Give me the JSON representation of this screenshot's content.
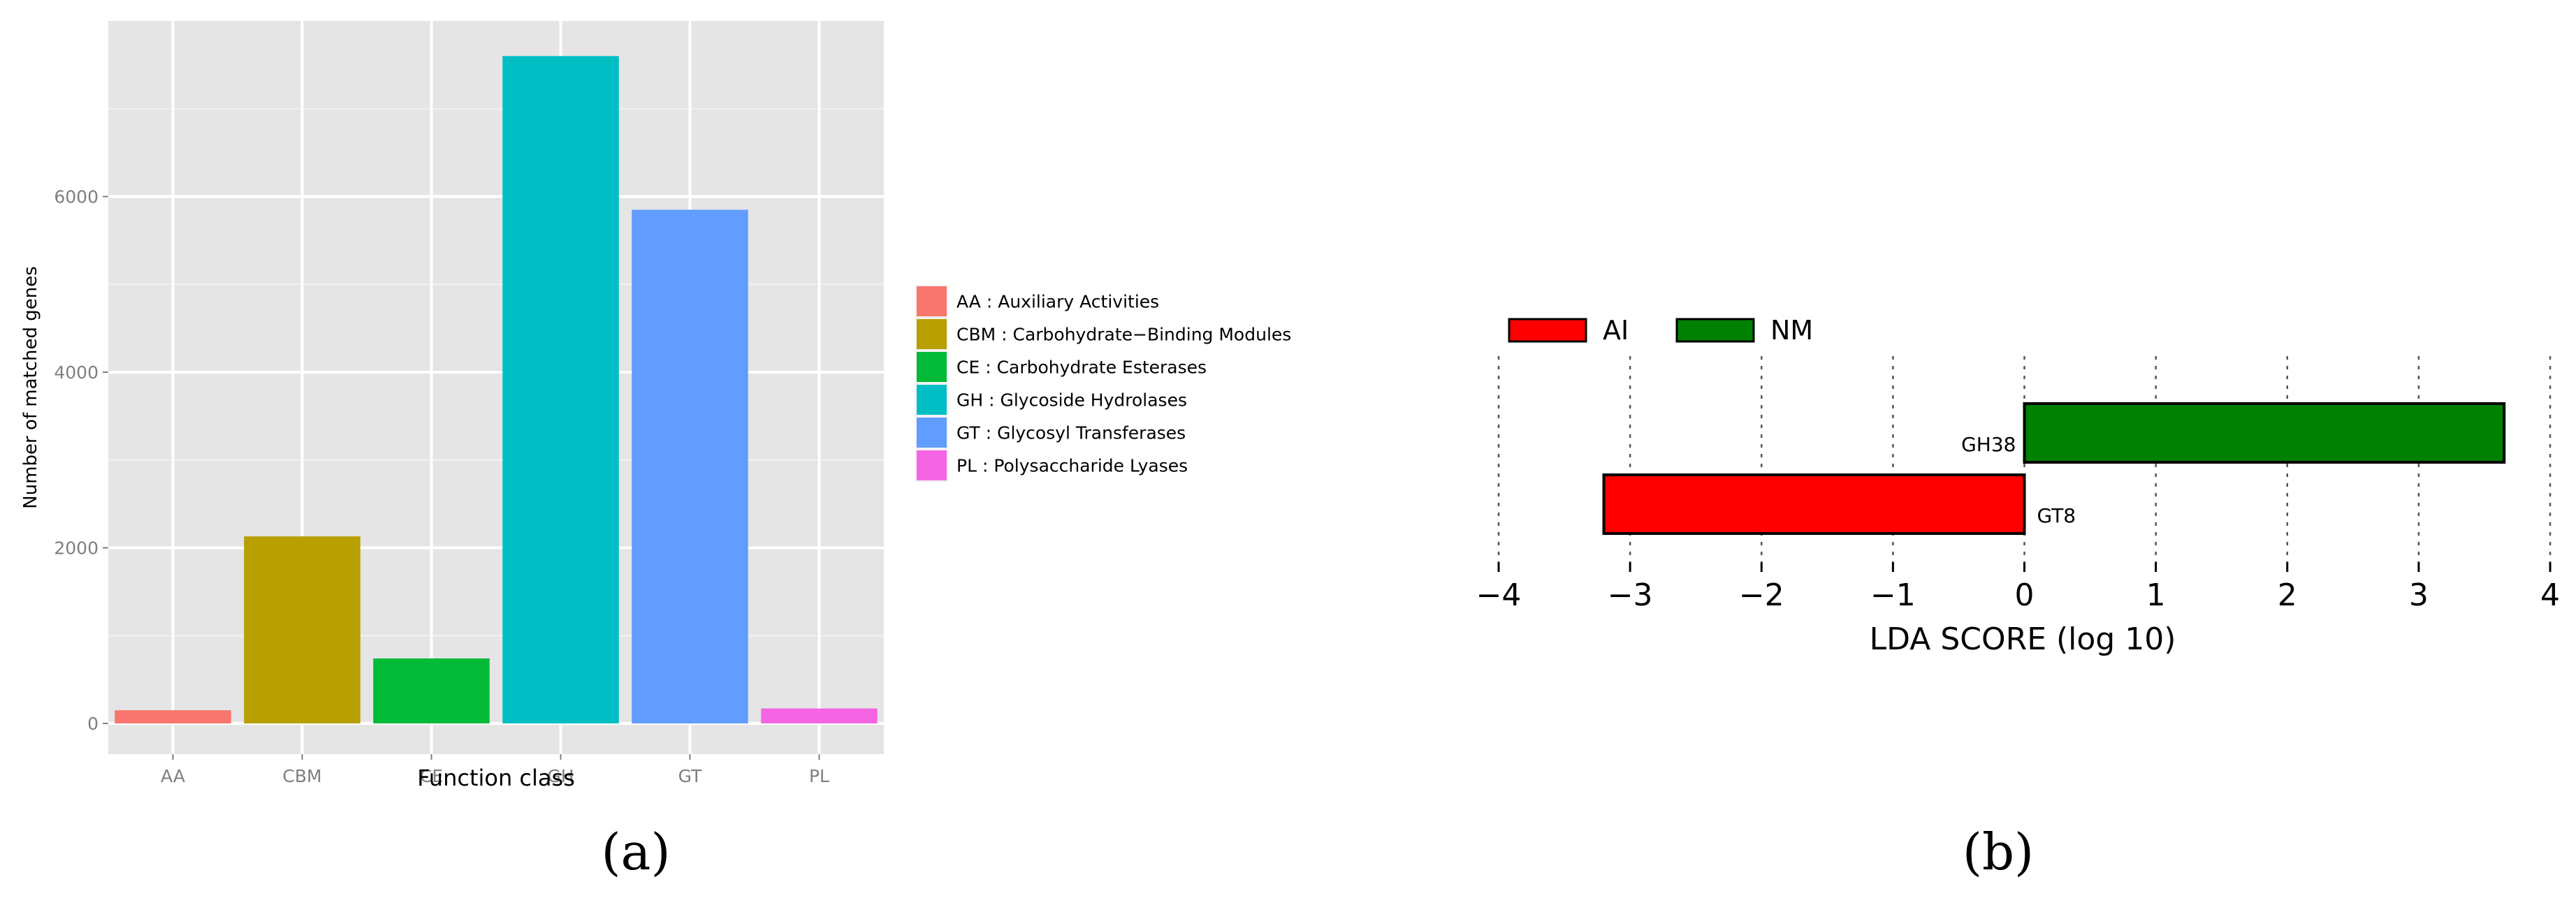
{
  "chart_data": [
    {
      "type": "bar",
      "xlabel": "Function class",
      "ylabel": "Number of matched genes",
      "categories": [
        "AA",
        "CBM",
        "CE",
        "GH",
        "GT",
        "PL"
      ],
      "values": [
        150,
        2130,
        740,
        7600,
        5850,
        170
      ],
      "ylim": [
        -350,
        8000
      ],
      "yticks": [
        0,
        2000,
        4000,
        6000
      ],
      "grid": true,
      "legend_position": "right",
      "colors": [
        "#F8766D",
        "#B79F00",
        "#00BA38",
        "#00BFC4",
        "#619CFF",
        "#F564E3"
      ],
      "legend": [
        "AA : Auxiliary Activities",
        "CBM : Carbohydrate−Binding Modules",
        "CE : Carbohydrate Esterases",
        "GH : Glycoside Hydrolases",
        "GT : Glycosyl Transferases",
        "PL : Polysaccharide Lyases"
      ],
      "panel_label": "(a)"
    },
    {
      "type": "bar",
      "orientation": "horizontal",
      "xlabel": "LDA SCORE (log 10)",
      "xlim": [
        -4,
        4
      ],
      "xticks": [
        -4,
        -3,
        -2,
        -1,
        0,
        1,
        2,
        3,
        4
      ],
      "xtick_labels": [
        "−4",
        "−3",
        "−2",
        "−1",
        "0",
        "1",
        "2",
        "3",
        "4"
      ],
      "categories": [
        "GH38",
        "GT8"
      ],
      "values": [
        3.65,
        -3.2
      ],
      "bar_groups": [
        "NM",
        "AI"
      ],
      "legend_position": "top-left",
      "series": [
        {
          "name": "AI",
          "color": "#FF0000"
        },
        {
          "name": "NM",
          "color": "#008000"
        }
      ],
      "panel_label": "(b)"
    }
  ]
}
